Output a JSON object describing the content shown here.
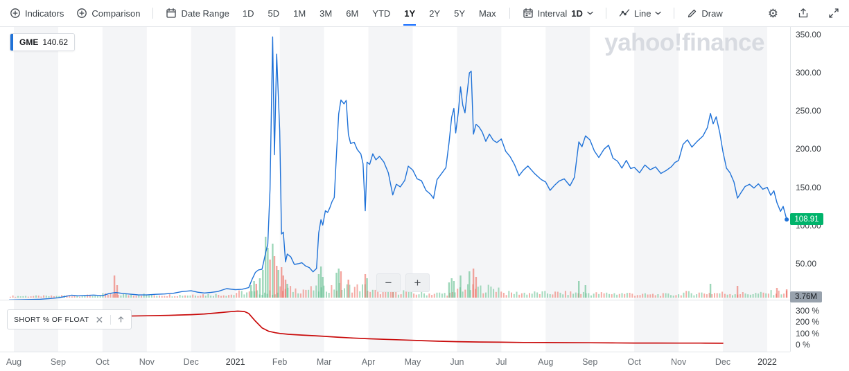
{
  "toolbar": {
    "indicators_label": "Indicators",
    "comparison_label": "Comparison",
    "date_range_label": "Date Range",
    "ranges": [
      "1D",
      "5D",
      "1M",
      "3M",
      "6M",
      "YTD",
      "1Y",
      "2Y",
      "5Y",
      "Max"
    ],
    "selected_range": "1Y",
    "interval_label": "Interval",
    "interval_value": "1D",
    "chart_type_label": "Line",
    "draw_label": "Draw",
    "settings_icon": "gear",
    "share_icon": "share-tray",
    "fullscreen_icon": "expand-arrows"
  },
  "chart": {
    "symbol": "GME",
    "price": "140.62",
    "watermark": "yahoo!finance",
    "current_price_label": "108.91",
    "volume_label": "3.76M",
    "colors": {
      "line": "#1f72d8",
      "short_line": "#c90b0b",
      "badge_green": "#00b36b",
      "vol_up": "#5bbd8b",
      "vol_down": "#ec6a5f",
      "band": "#f4f5f7",
      "accent_blue": "#0f69ff"
    },
    "price_axis": [
      {
        "v": 350,
        "label": "350.00"
      },
      {
        "v": 300,
        "label": "300.00"
      },
      {
        "v": 250,
        "label": "250.00"
      },
      {
        "v": 200,
        "label": "200.00"
      },
      {
        "v": 150,
        "label": "150.00"
      },
      {
        "v": 100,
        "label": "100.00"
      },
      {
        "v": 50,
        "label": "50.00"
      }
    ],
    "pct_axis": [
      {
        "v": 300,
        "label": "300 %"
      },
      {
        "v": 200,
        "label": "200 %"
      },
      {
        "v": 100,
        "label": "100 %"
      },
      {
        "v": 0,
        "label": "0 %"
      }
    ],
    "x_labels": [
      {
        "m": 0,
        "t": "Aug"
      },
      {
        "m": 1,
        "t": "Sep"
      },
      {
        "m": 2,
        "t": "Oct"
      },
      {
        "m": 3,
        "t": "Nov"
      },
      {
        "m": 4,
        "t": "Dec"
      },
      {
        "m": 5,
        "t": "2021",
        "year": true
      },
      {
        "m": 6,
        "t": "Feb"
      },
      {
        "m": 7,
        "t": "Mar"
      },
      {
        "m": 8,
        "t": "Apr"
      },
      {
        "m": 9,
        "t": "May"
      },
      {
        "m": 10,
        "t": "Jun"
      },
      {
        "m": 11,
        "t": "Jul"
      },
      {
        "m": 12,
        "t": "Aug"
      },
      {
        "m": 13,
        "t": "Sep"
      },
      {
        "m": 14,
        "t": "Oct"
      },
      {
        "m": 15,
        "t": "Nov"
      },
      {
        "m": 16,
        "t": "Dec"
      },
      {
        "m": 17,
        "t": "2022",
        "year": true
      }
    ]
  },
  "indicator_panel": {
    "label": "SHORT % OF FLOAT",
    "close_icon": "x",
    "expand_icon": "arrow-up"
  },
  "zoom": {
    "out_label": "−",
    "in_label": "+"
  },
  "chart_data": [
    {
      "type": "line",
      "name": "GME daily close",
      "x_unit": "months since 2020-08-01 (5 = Jan 2021, 17 = Jan 2022)",
      "ylim": [
        0,
        350
      ],
      "last_value": 108.91,
      "points": [
        [
          -0.1,
          3.9
        ],
        [
          0,
          4.0
        ],
        [
          0.2,
          4.2
        ],
        [
          0.4,
          4.4
        ],
        [
          0.6,
          4.8
        ],
        [
          0.8,
          5.6
        ],
        [
          1.0,
          6.7
        ],
        [
          1.15,
          8.2
        ],
        [
          1.3,
          10.0
        ],
        [
          1.45,
          9.2
        ],
        [
          1.6,
          9.6
        ],
        [
          1.8,
          10.2
        ],
        [
          2.0,
          9.4
        ],
        [
          2.15,
          12.2
        ],
        [
          2.3,
          13.6
        ],
        [
          2.45,
          12.4
        ],
        [
          2.6,
          11.6
        ],
        [
          2.8,
          10.5
        ],
        [
          3.0,
          10.4
        ],
        [
          3.2,
          11.2
        ],
        [
          3.4,
          11.7
        ],
        [
          3.6,
          12.6
        ],
        [
          3.8,
          14.8
        ],
        [
          4.0,
          15.8
        ],
        [
          4.15,
          13.9
        ],
        [
          4.3,
          12.9
        ],
        [
          4.45,
          13.7
        ],
        [
          4.6,
          14.8
        ],
        [
          4.8,
          18.6
        ],
        [
          5.0,
          17.3
        ],
        [
          5.15,
          17.8
        ],
        [
          5.3,
          20.0
        ],
        [
          5.38,
          31.4
        ],
        [
          5.45,
          39.9
        ],
        [
          5.52,
          43.0
        ],
        [
          5.6,
          44.0
        ],
        [
          5.68,
          65.0
        ],
        [
          5.73,
          76.8
        ],
        [
          5.78,
          148.0
        ],
        [
          5.84,
          347.5
        ],
        [
          5.88,
          193.6
        ],
        [
          5.93,
          325.0
        ],
        [
          6.0,
          225.0
        ],
        [
          6.04,
          90.0
        ],
        [
          6.08,
          92.4
        ],
        [
          6.13,
          53.5
        ],
        [
          6.17,
          63.8
        ],
        [
          6.25,
          60.0
        ],
        [
          6.33,
          50.3
        ],
        [
          6.42,
          51.2
        ],
        [
          6.5,
          52.4
        ],
        [
          6.58,
          48.4
        ],
        [
          6.67,
          45.9
        ],
        [
          6.75,
          40.6
        ],
        [
          6.83,
          44.9
        ],
        [
          6.88,
          91.7
        ],
        [
          6.93,
          108.7
        ],
        [
          6.97,
          101.7
        ],
        [
          7.03,
          120.4
        ],
        [
          7.08,
          118.2
        ],
        [
          7.13,
          124.2
        ],
        [
          7.18,
          132.4
        ],
        [
          7.23,
          137.7
        ],
        [
          7.28,
          194.5
        ],
        [
          7.33,
          246.9
        ],
        [
          7.38,
          265.0
        ],
        [
          7.45,
          260.0
        ],
        [
          7.5,
          264.5
        ],
        [
          7.55,
          220.1
        ],
        [
          7.6,
          208.2
        ],
        [
          7.68,
          209.8
        ],
        [
          7.75,
          200.3
        ],
        [
          7.83,
          194.5
        ],
        [
          7.88,
          181.8
        ],
        [
          7.93,
          120.3
        ],
        [
          7.97,
          183.8
        ],
        [
          8.03,
          181.0
        ],
        [
          8.1,
          194.8
        ],
        [
          8.17,
          186.9
        ],
        [
          8.25,
          191.4
        ],
        [
          8.35,
          184.0
        ],
        [
          8.45,
          170.0
        ],
        [
          8.55,
          141.0
        ],
        [
          8.63,
          155.0
        ],
        [
          8.72,
          151.5
        ],
        [
          8.82,
          160.0
        ],
        [
          8.9,
          178.6
        ],
        [
          9.0,
          173.6
        ],
        [
          9.1,
          162.0
        ],
        [
          9.2,
          159.5
        ],
        [
          9.3,
          147.0
        ],
        [
          9.4,
          142.0
        ],
        [
          9.47,
          136.5
        ],
        [
          9.55,
          161.0
        ],
        [
          9.65,
          168.8
        ],
        [
          9.75,
          176.8
        ],
        [
          9.82,
          209.4
        ],
        [
          9.88,
          242.6
        ],
        [
          9.93,
          254.1
        ],
        [
          9.97,
          222.0
        ],
        [
          10.03,
          249.0
        ],
        [
          10.08,
          282.2
        ],
        [
          10.13,
          258.2
        ],
        [
          10.18,
          248.4
        ],
        [
          10.24,
          280.0
        ],
        [
          10.28,
          300.5
        ],
        [
          10.32,
          302.6
        ],
        [
          10.37,
          220.4
        ],
        [
          10.43,
          233.3
        ],
        [
          10.5,
          229.6
        ],
        [
          10.57,
          223.2
        ],
        [
          10.65,
          211.0
        ],
        [
          10.73,
          220.4
        ],
        [
          10.82,
          212.3
        ],
        [
          10.9,
          209.5
        ],
        [
          11.0,
          214.1
        ],
        [
          11.1,
          198.0
        ],
        [
          11.2,
          191.0
        ],
        [
          11.3,
          180.4
        ],
        [
          11.4,
          166.2
        ],
        [
          11.5,
          173.5
        ],
        [
          11.6,
          178.8
        ],
        [
          11.75,
          169.0
        ],
        [
          11.9,
          161.1
        ],
        [
          12.0,
          158.0
        ],
        [
          12.1,
          147.0
        ],
        [
          12.2,
          153.5
        ],
        [
          12.3,
          159.0
        ],
        [
          12.42,
          162.0
        ],
        [
          12.55,
          152.9
        ],
        [
          12.65,
          164.0
        ],
        [
          12.75,
          210.3
        ],
        [
          12.82,
          204.0
        ],
        [
          12.9,
          218.2
        ],
        [
          13.0,
          212.9
        ],
        [
          13.1,
          198.5
        ],
        [
          13.2,
          190.0
        ],
        [
          13.32,
          201.0
        ],
        [
          13.42,
          206.0
        ],
        [
          13.52,
          189.0
        ],
        [
          13.62,
          185.2
        ],
        [
          13.72,
          176.0
        ],
        [
          13.82,
          186.2
        ],
        [
          13.92,
          175.5
        ],
        [
          14.0,
          177.0
        ],
        [
          14.12,
          170.0
        ],
        [
          14.24,
          180.1
        ],
        [
          14.36,
          174.0
        ],
        [
          14.48,
          177.7
        ],
        [
          14.6,
          169.1
        ],
        [
          14.72,
          173.0
        ],
        [
          14.84,
          178.0
        ],
        [
          14.92,
          183.5
        ],
        [
          15.0,
          186.0
        ],
        [
          15.1,
          207.0
        ],
        [
          15.2,
          213.0
        ],
        [
          15.3,
          203.5
        ],
        [
          15.42,
          211.0
        ],
        [
          15.55,
          218.0
        ],
        [
          15.65,
          229.0
        ],
        [
          15.72,
          247.6
        ],
        [
          15.78,
          234.0
        ],
        [
          15.85,
          243.0
        ],
        [
          15.93,
          222.0
        ],
        [
          16.0,
          198.0
        ],
        [
          16.08,
          176.0
        ],
        [
          16.16,
          170.0
        ],
        [
          16.25,
          158.0
        ],
        [
          16.33,
          136.9
        ],
        [
          16.42,
          145.0
        ],
        [
          16.5,
          152.0
        ],
        [
          16.6,
          155.0
        ],
        [
          16.7,
          150.0
        ],
        [
          16.8,
          155.5
        ],
        [
          16.9,
          148.5
        ],
        [
          17.0,
          151.0
        ],
        [
          17.08,
          140.6
        ],
        [
          17.15,
          146.5
        ],
        [
          17.22,
          131.0
        ],
        [
          17.3,
          119.5
        ],
        [
          17.36,
          126.0
        ],
        [
          17.44,
          108.91
        ]
      ]
    },
    {
      "type": "bar",
      "name": "Volume",
      "unit": "relative height 0-100 (≈88 = Jan 2021 squeeze peak, last bar = 3.76M shares)",
      "monthly_base": [
        3,
        4,
        6,
        5,
        6,
        10,
        16,
        20,
        12,
        8,
        18,
        9,
        9,
        8,
        6,
        9,
        8,
        10
      ],
      "spike_bars": [
        [
          2.27,
          32,
          "r"
        ],
        [
          2.33,
          18,
          "r"
        ],
        [
          5.35,
          18,
          "g"
        ],
        [
          5.42,
          24,
          "g"
        ],
        [
          5.47,
          20,
          "r"
        ],
        [
          5.55,
          28,
          "g"
        ],
        [
          5.62,
          40,
          "g"
        ],
        [
          5.68,
          88,
          "g"
        ],
        [
          5.73,
          72,
          "g"
        ],
        [
          5.78,
          55,
          "r"
        ],
        [
          5.84,
          78,
          "g"
        ],
        [
          5.88,
          60,
          "r"
        ],
        [
          5.93,
          46,
          "r"
        ],
        [
          5.97,
          40,
          "g"
        ],
        [
          6.04,
          44,
          "r"
        ],
        [
          6.08,
          32,
          "r"
        ],
        [
          6.13,
          26,
          "r"
        ],
        [
          6.17,
          20,
          "g"
        ],
        [
          6.88,
          34,
          "g"
        ],
        [
          6.93,
          45,
          "g"
        ],
        [
          6.97,
          30,
          "g"
        ],
        [
          7.28,
          36,
          "g"
        ],
        [
          7.33,
          42,
          "g"
        ],
        [
          7.38,
          38,
          "r"
        ],
        [
          7.55,
          26,
          "r"
        ],
        [
          7.93,
          34,
          "r"
        ],
        [
          7.97,
          28,
          "g"
        ],
        [
          8.55,
          20,
          "r"
        ],
        [
          9.82,
          22,
          "g"
        ],
        [
          9.88,
          28,
          "g"
        ],
        [
          9.93,
          24,
          "g"
        ],
        [
          10.08,
          32,
          "g"
        ],
        [
          10.28,
          38,
          "g"
        ],
        [
          10.37,
          42,
          "r"
        ],
        [
          10.43,
          30,
          "r"
        ],
        [
          12.75,
          24,
          "g"
        ],
        [
          12.9,
          18,
          "g"
        ],
        [
          15.72,
          20,
          "g"
        ],
        [
          16.33,
          17,
          "r"
        ],
        [
          17.22,
          14,
          "r"
        ],
        [
          17.44,
          12,
          "r"
        ]
      ]
    },
    {
      "type": "line",
      "name": "Short % of float",
      "ylim": [
        0,
        330
      ],
      "points": [
        [
          -0.1,
          244
        ],
        [
          0.5,
          248
        ],
        [
          1,
          252
        ],
        [
          1.5,
          254
        ],
        [
          2,
          257
        ],
        [
          2.5,
          259
        ],
        [
          3,
          262
        ],
        [
          3.5,
          266
        ],
        [
          4,
          272
        ],
        [
          4.3,
          278
        ],
        [
          4.6,
          288
        ],
        [
          4.9,
          299
        ],
        [
          5.05,
          303
        ],
        [
          5.2,
          300
        ],
        [
          5.3,
          282
        ],
        [
          5.45,
          215
        ],
        [
          5.6,
          155
        ],
        [
          5.75,
          125
        ],
        [
          5.9,
          112
        ],
        [
          6.0,
          106
        ],
        [
          6.2,
          98
        ],
        [
          6.5,
          91
        ],
        [
          6.8,
          85
        ],
        [
          7.0,
          80
        ],
        [
          7.3,
          73
        ],
        [
          7.6,
          66
        ],
        [
          8.0,
          59
        ],
        [
          8.4,
          53
        ],
        [
          8.8,
          48
        ],
        [
          9.2,
          42
        ],
        [
          9.6,
          37
        ],
        [
          10.0,
          33
        ],
        [
          10.5,
          30
        ],
        [
          11.0,
          28
        ],
        [
          11.5,
          26
        ],
        [
          12.0,
          25
        ],
        [
          12.5,
          24
        ],
        [
          13.0,
          23
        ],
        [
          13.5,
          22
        ],
        [
          14.0,
          21
        ],
        [
          14.5,
          21
        ],
        [
          15.0,
          20
        ],
        [
          15.5,
          20
        ],
        [
          16.0,
          19
        ]
      ]
    }
  ]
}
